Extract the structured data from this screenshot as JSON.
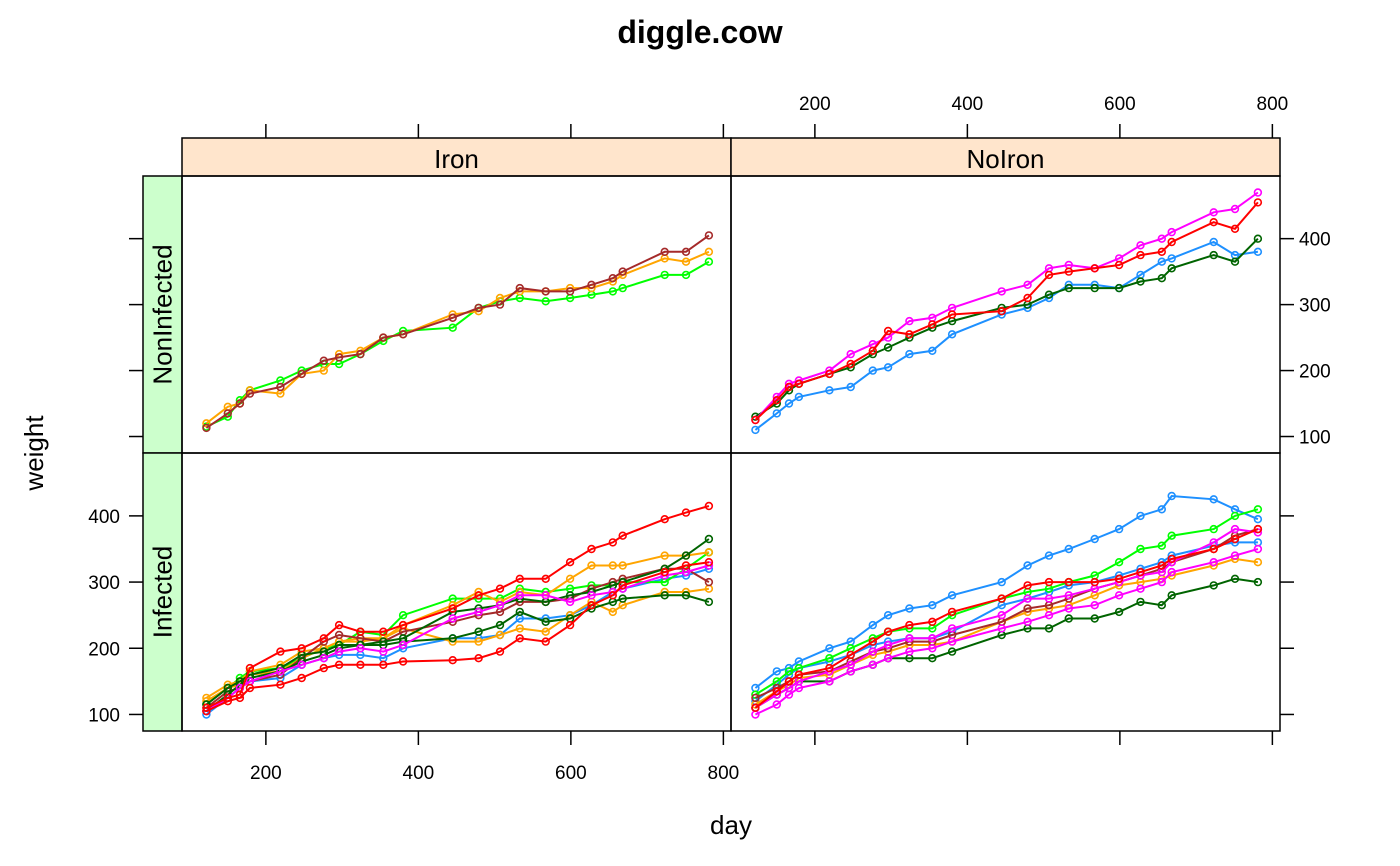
{
  "chart_data": {
    "type": "line",
    "title": "diggle.cow",
    "xlabel": "day",
    "ylabel": "weight",
    "xlim": [
      90,
      810
    ],
    "ylim": [
      75,
      495
    ],
    "x_ticks": [
      200,
      400,
      600,
      800
    ],
    "y_ticks": [
      100,
      200,
      300,
      400
    ],
    "strip_fill": "#ffe5cc",
    "strip_left_fill": "#ccffcc",
    "marker": "open-circle",
    "days": [
      122,
      150,
      166,
      179,
      219,
      247,
      276,
      296,
      324,
      354,
      380,
      445,
      479,
      507,
      533,
      567,
      599,
      627,
      655,
      668,
      723,
      751,
      781
    ],
    "panels": [
      {
        "iron": "Iron",
        "infection": "NonInfected",
        "series": [
          {
            "color": "#00ff00",
            "values": [
              115,
              130,
              155,
              170,
              185,
              200,
              210,
              210,
              225,
              245,
              260,
              265,
              295,
              305,
              310,
              305,
              310,
              315,
              320,
              325,
              345,
              345,
              365
            ]
          },
          {
            "color": "#ffa500",
            "values": [
              120,
              145,
              150,
              170,
              165,
              195,
              200,
              225,
              230,
              250,
              255,
              285,
              290,
              310,
              320,
              320,
              325,
              325,
              335,
              345,
              370,
              365,
              380
            ]
          },
          {
            "color": "#a52a2a",
            "values": [
              113,
              135,
              150,
              165,
              175,
              195,
              215,
              220,
              225,
              250,
              255,
              280,
              295,
              300,
              325,
              320,
              320,
              330,
              340,
              350,
              380,
              380,
              405
            ]
          }
        ]
      },
      {
        "iron": "NoIron",
        "infection": "NonInfected",
        "series": [
          {
            "color": "#1e90ff",
            "values": [
              110,
              135,
              150,
              160,
              170,
              175,
              200,
              205,
              225,
              230,
              255,
              285,
              295,
              310,
              330,
              330,
              325,
              345,
              365,
              370,
              395,
              375,
              380
            ]
          },
          {
            "color": "#006400",
            "values": [
              130,
              150,
              170,
              180,
              195,
              205,
              225,
              235,
              250,
              265,
              275,
              295,
              300,
              315,
              325,
              325,
              325,
              335,
              340,
              355,
              375,
              365,
              400
            ]
          },
          {
            "color": "#ff00ff",
            "values": [
              125,
              160,
              180,
              185,
              200,
              225,
              240,
              250,
              275,
              280,
              295,
              320,
              330,
              355,
              360,
              355,
              370,
              390,
              400,
              410,
              440,
              445,
              470
            ]
          },
          {
            "color": "#ff0000",
            "values": [
              125,
              155,
              175,
              180,
              195,
              210,
              230,
              260,
              255,
              270,
              285,
              290,
              310,
              345,
              350,
              355,
              360,
              375,
              380,
              395,
              425,
              415,
              455
            ]
          }
        ]
      },
      {
        "iron": "Iron",
        "infection": "Infected",
        "series": [
          {
            "color": "#1e90ff",
            "values": [
              100,
              125,
              140,
              150,
              155,
              175,
              185,
              190,
              190,
              185,
              200,
              215,
              215,
              220,
              245,
              245,
              250,
              265,
              285,
              290,
              305,
              310,
              320
            ]
          },
          {
            "color": "#00ff00",
            "values": [
              115,
              140,
              155,
              165,
              170,
              185,
              200,
              205,
              225,
              220,
              250,
              275,
              275,
              275,
              290,
              285,
              290,
              295,
              295,
              300,
              300,
              320,
              345
            ]
          },
          {
            "color": "#ffa500",
            "values": [
              125,
              145,
              150,
              165,
              175,
              195,
              200,
              210,
              215,
              215,
              235,
              265,
              285,
              270,
              285,
              280,
              305,
              325,
              325,
              325,
              340,
              340,
              345
            ]
          },
          {
            "color": "#ffa500",
            "values": [
              120,
              140,
              145,
              160,
              165,
              185,
              200,
              210,
              210,
              215,
              230,
              210,
              210,
              220,
              230,
              225,
              250,
              270,
              255,
              265,
              285,
              285,
              290
            ]
          },
          {
            "color": "#a52a2a",
            "values": [
              110,
              135,
              140,
              150,
              160,
              185,
              210,
              220,
              215,
              210,
              225,
              240,
              250,
              255,
              270,
              270,
              275,
              290,
              300,
              305,
              320,
              320,
              300
            ]
          },
          {
            "color": "#006400",
            "values": [
              115,
              140,
              150,
              160,
              170,
              190,
              195,
              205,
              205,
              210,
              215,
              255,
              260,
              265,
              275,
              270,
              280,
              285,
              295,
              300,
              320,
              340,
              365
            ]
          },
          {
            "color": "#006400",
            "values": [
              105,
              130,
              145,
              155,
              165,
              180,
              190,
              200,
              205,
              205,
              210,
              215,
              225,
              235,
              255,
              240,
              245,
              260,
              270,
              275,
              280,
              280,
              270
            ]
          },
          {
            "color": "#ff00ff",
            "values": [
              105,
              125,
              140,
              150,
              165,
              175,
              185,
              195,
              200,
              195,
              205,
              245,
              255,
              265,
              280,
              280,
              270,
              280,
              285,
              290,
              310,
              315,
              325
            ]
          },
          {
            "color": "#ff0000",
            "values": [
              110,
              125,
              130,
              170,
              195,
              200,
              215,
              235,
              225,
              225,
              235,
              260,
              280,
              290,
              305,
              305,
              330,
              350,
              360,
              370,
              395,
              405,
              415
            ]
          },
          {
            "color": "#ff0000",
            "values": [
              105,
              120,
              125,
              140,
              145,
              155,
              170,
              175,
              175,
              175,
              180,
              182,
              185,
              195,
              215,
              210,
              235,
              265,
              280,
              295,
              315,
              325,
              330
            ]
          }
        ]
      },
      {
        "iron": "NoIron",
        "infection": "Infected",
        "series": [
          {
            "color": "#1e90ff",
            "values": [
              140,
              165,
              170,
              180,
              200,
              210,
              235,
              250,
              260,
              265,
              280,
              300,
              325,
              340,
              350,
              365,
              380,
              400,
              410,
              430,
              425,
              410,
              395
            ]
          },
          {
            "color": "#1e90ff",
            "values": [
              120,
              145,
              160,
              170,
              180,
              190,
              205,
              210,
              215,
              215,
              225,
              265,
              275,
              285,
              295,
              300,
              310,
              320,
              330,
              340,
              355,
              360,
              360
            ]
          },
          {
            "color": "#00ff00",
            "values": [
              130,
              150,
              165,
              170,
              185,
              200,
              215,
              225,
              230,
              230,
              250,
              275,
              285,
              290,
              300,
              310,
              330,
              350,
              355,
              370,
              380,
              400,
              410
            ]
          },
          {
            "color": "#ffa500",
            "values": [
              115,
              135,
              145,
              155,
              160,
              175,
              190,
              195,
              205,
              205,
              210,
              240,
              255,
              260,
              265,
              280,
              295,
              300,
              305,
              310,
              325,
              335,
              330
            ]
          },
          {
            "color": "#a52a2a",
            "values": [
              125,
              140,
              150,
              160,
              165,
              180,
              195,
              200,
              210,
              210,
              220,
              240,
              260,
              265,
              275,
              290,
              300,
              310,
              320,
              330,
              350,
              370,
              380
            ]
          },
          {
            "color": "#006400",
            "values": [
              110,
              130,
              140,
              150,
              150,
              165,
              175,
              185,
              185,
              185,
              195,
              220,
              230,
              230,
              245,
              245,
              255,
              270,
              265,
              280,
              295,
              305,
              300
            ]
          },
          {
            "color": "#ff00ff",
            "values": [
              110,
              130,
              140,
              150,
              165,
              175,
              195,
              205,
              215,
              215,
              230,
              250,
              275,
              275,
              280,
              290,
              300,
              310,
              315,
              330,
              360,
              380,
              375
            ]
          },
          {
            "color": "#ff00ff",
            "values": [
              100,
              115,
              130,
              140,
              150,
              165,
              175,
              185,
              195,
              200,
              210,
              230,
              240,
              250,
              260,
              265,
              280,
              290,
              300,
              315,
              330,
              340,
              350
            ]
          },
          {
            "color": "#ff0000",
            "values": [
              110,
              135,
              150,
              160,
              170,
              190,
              210,
              225,
              235,
              240,
              255,
              275,
              295,
              300,
              300,
              300,
              305,
              315,
              325,
              335,
              350,
              365,
              380
            ]
          }
        ]
      }
    ]
  }
}
